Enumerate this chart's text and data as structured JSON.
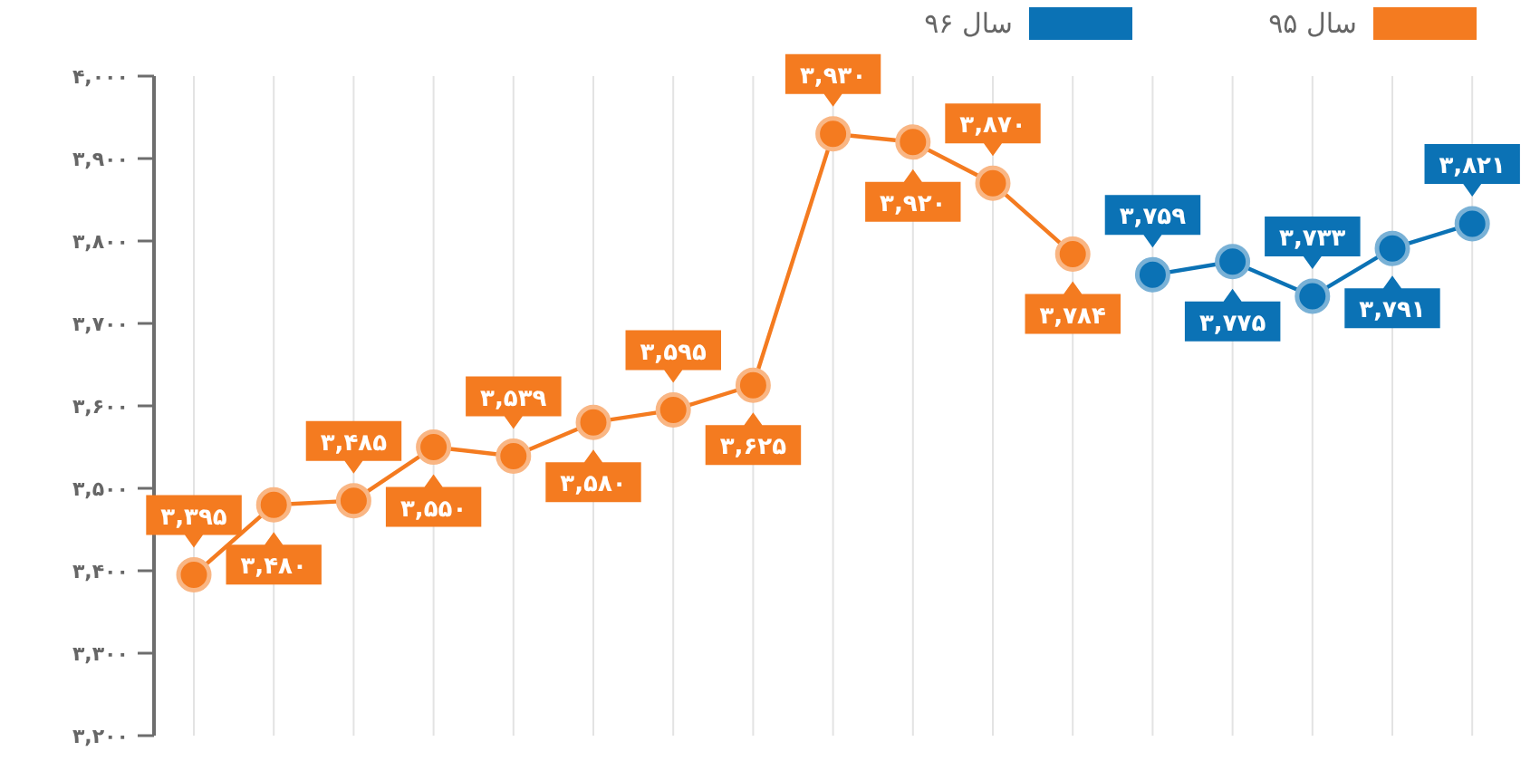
{
  "chart_data": {
    "type": "line",
    "categories": [
      null,
      null,
      null,
      null,
      null,
      null,
      null,
      null,
      null,
      null,
      null,
      null,
      null,
      null,
      null,
      null,
      null
    ],
    "series": [
      {
        "name": "سال ۹۵",
        "color": "#f47b20",
        "values": [
          3395,
          3480,
          3485,
          3550,
          3539,
          3580,
          3595,
          3625,
          3930,
          3920,
          3870,
          3784,
          null,
          null,
          null,
          null,
          null
        ],
        "value_labels": [
          "۳,۳۹۵",
          "۳,۴۸۰",
          "۳,۴۸۵",
          "۳,۵۵۰",
          "۳,۵۳۹",
          "۳,۵۸۰",
          "۳,۵۹۵",
          "۳,۶۲۵",
          "۳,۹۳۰",
          "۳,۹۲۰",
          "۳,۸۷۰",
          "۳,۷۸۴",
          null,
          null,
          null,
          null,
          null
        ]
      },
      {
        "name": "سال ۹۶",
        "color": "#0b72b5",
        "values": [
          null,
          null,
          null,
          null,
          null,
          null,
          null,
          null,
          null,
          null,
          null,
          null,
          3759,
          3775,
          3733,
          3791,
          3821
        ],
        "value_labels": [
          null,
          null,
          null,
          null,
          null,
          null,
          null,
          null,
          null,
          null,
          null,
          null,
          "۳,۷۵۹",
          "۳,۷۷۵",
          "۳,۷۳۳",
          "۳,۷۹۱",
          "۳,۸۲۱"
        ]
      }
    ],
    "ylim": [
      3200,
      4000
    ],
    "yticks": [
      {
        "value": 3200,
        "label": "۳,۲۰۰"
      },
      {
        "value": 3300,
        "label": "۳,۳۰۰"
      },
      {
        "value": 3400,
        "label": "۳,۴۰۰"
      },
      {
        "value": 3500,
        "label": "۳,۵۰۰"
      },
      {
        "value": 3600,
        "label": "۳,۶۰۰"
      },
      {
        "value": 3700,
        "label": "۳,۷۰۰"
      },
      {
        "value": 3800,
        "label": "۳,۸۰۰"
      },
      {
        "value": 3900,
        "label": "۳,۹۰۰"
      },
      {
        "value": 4000,
        "label": "۴,۰۰۰"
      }
    ],
    "grid": "x",
    "legend": "top right",
    "tick_labels": "y",
    "marker": "circle",
    "line_style": "solid"
  }
}
